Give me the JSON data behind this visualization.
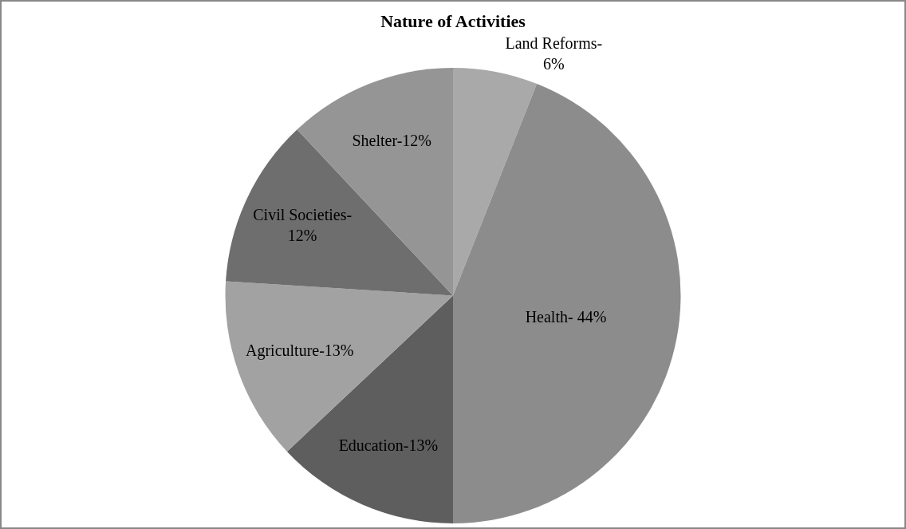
{
  "chart_data": {
    "type": "pie",
    "title": "Nature of Activities",
    "categories": [
      "Land Reforms-\n6%",
      "Health- 44%",
      "Education-13%",
      "Agriculture-13%",
      "Civil Societies-\n12%",
      "Shelter-12%"
    ],
    "values": [
      6,
      44,
      13,
      13,
      12,
      12
    ],
    "colors": [
      "#a9a9a9",
      "#8c8c8c",
      "#5e5e5e",
      "#a2a2a2",
      "#6e6e6e",
      "#959595"
    ],
    "legend": false
  }
}
